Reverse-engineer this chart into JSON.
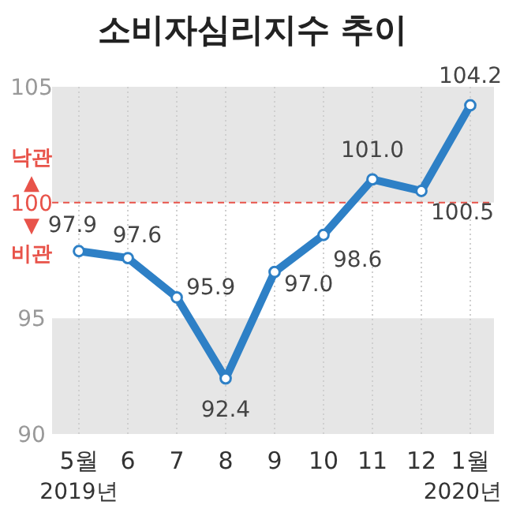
{
  "chart_data": {
    "type": "line",
    "title": "소비자심리지수 추이",
    "categories": [
      "5월",
      "6",
      "7",
      "8",
      "9",
      "10",
      "11",
      "12",
      "1월"
    ],
    "series": [
      {
        "color": "#2e80c6",
        "values": [
          97.9,
          97.6,
          95.9,
          92.4,
          97.0,
          98.6,
          101.0,
          100.5,
          104.2
        ],
        "value_labels": [
          "97.9",
          "97.6",
          "95.9",
          "92.4",
          "97.0",
          "98.6",
          "101.0",
          "100.5",
          "104.2"
        ]
      }
    ],
    "ylim": [
      90,
      105
    ],
    "yticks": [
      90,
      95,
      100,
      105
    ],
    "grid": "x",
    "marker": "circle",
    "line_style": "solid",
    "bands": [
      {
        "axis": "y",
        "from": 90,
        "to": 95,
        "color": "#e6e6e6"
      },
      {
        "axis": "y",
        "from": 100,
        "to": 105,
        "color": "#e6e6e6"
      }
    ],
    "ref_lines": [
      {
        "axis": "y",
        "value": 100,
        "color": "#e8534a",
        "line_style": "dashed"
      }
    ],
    "annotations": [
      "낙관",
      "▲",
      "▼",
      "비관",
      "2019년",
      "2020년"
    ]
  }
}
